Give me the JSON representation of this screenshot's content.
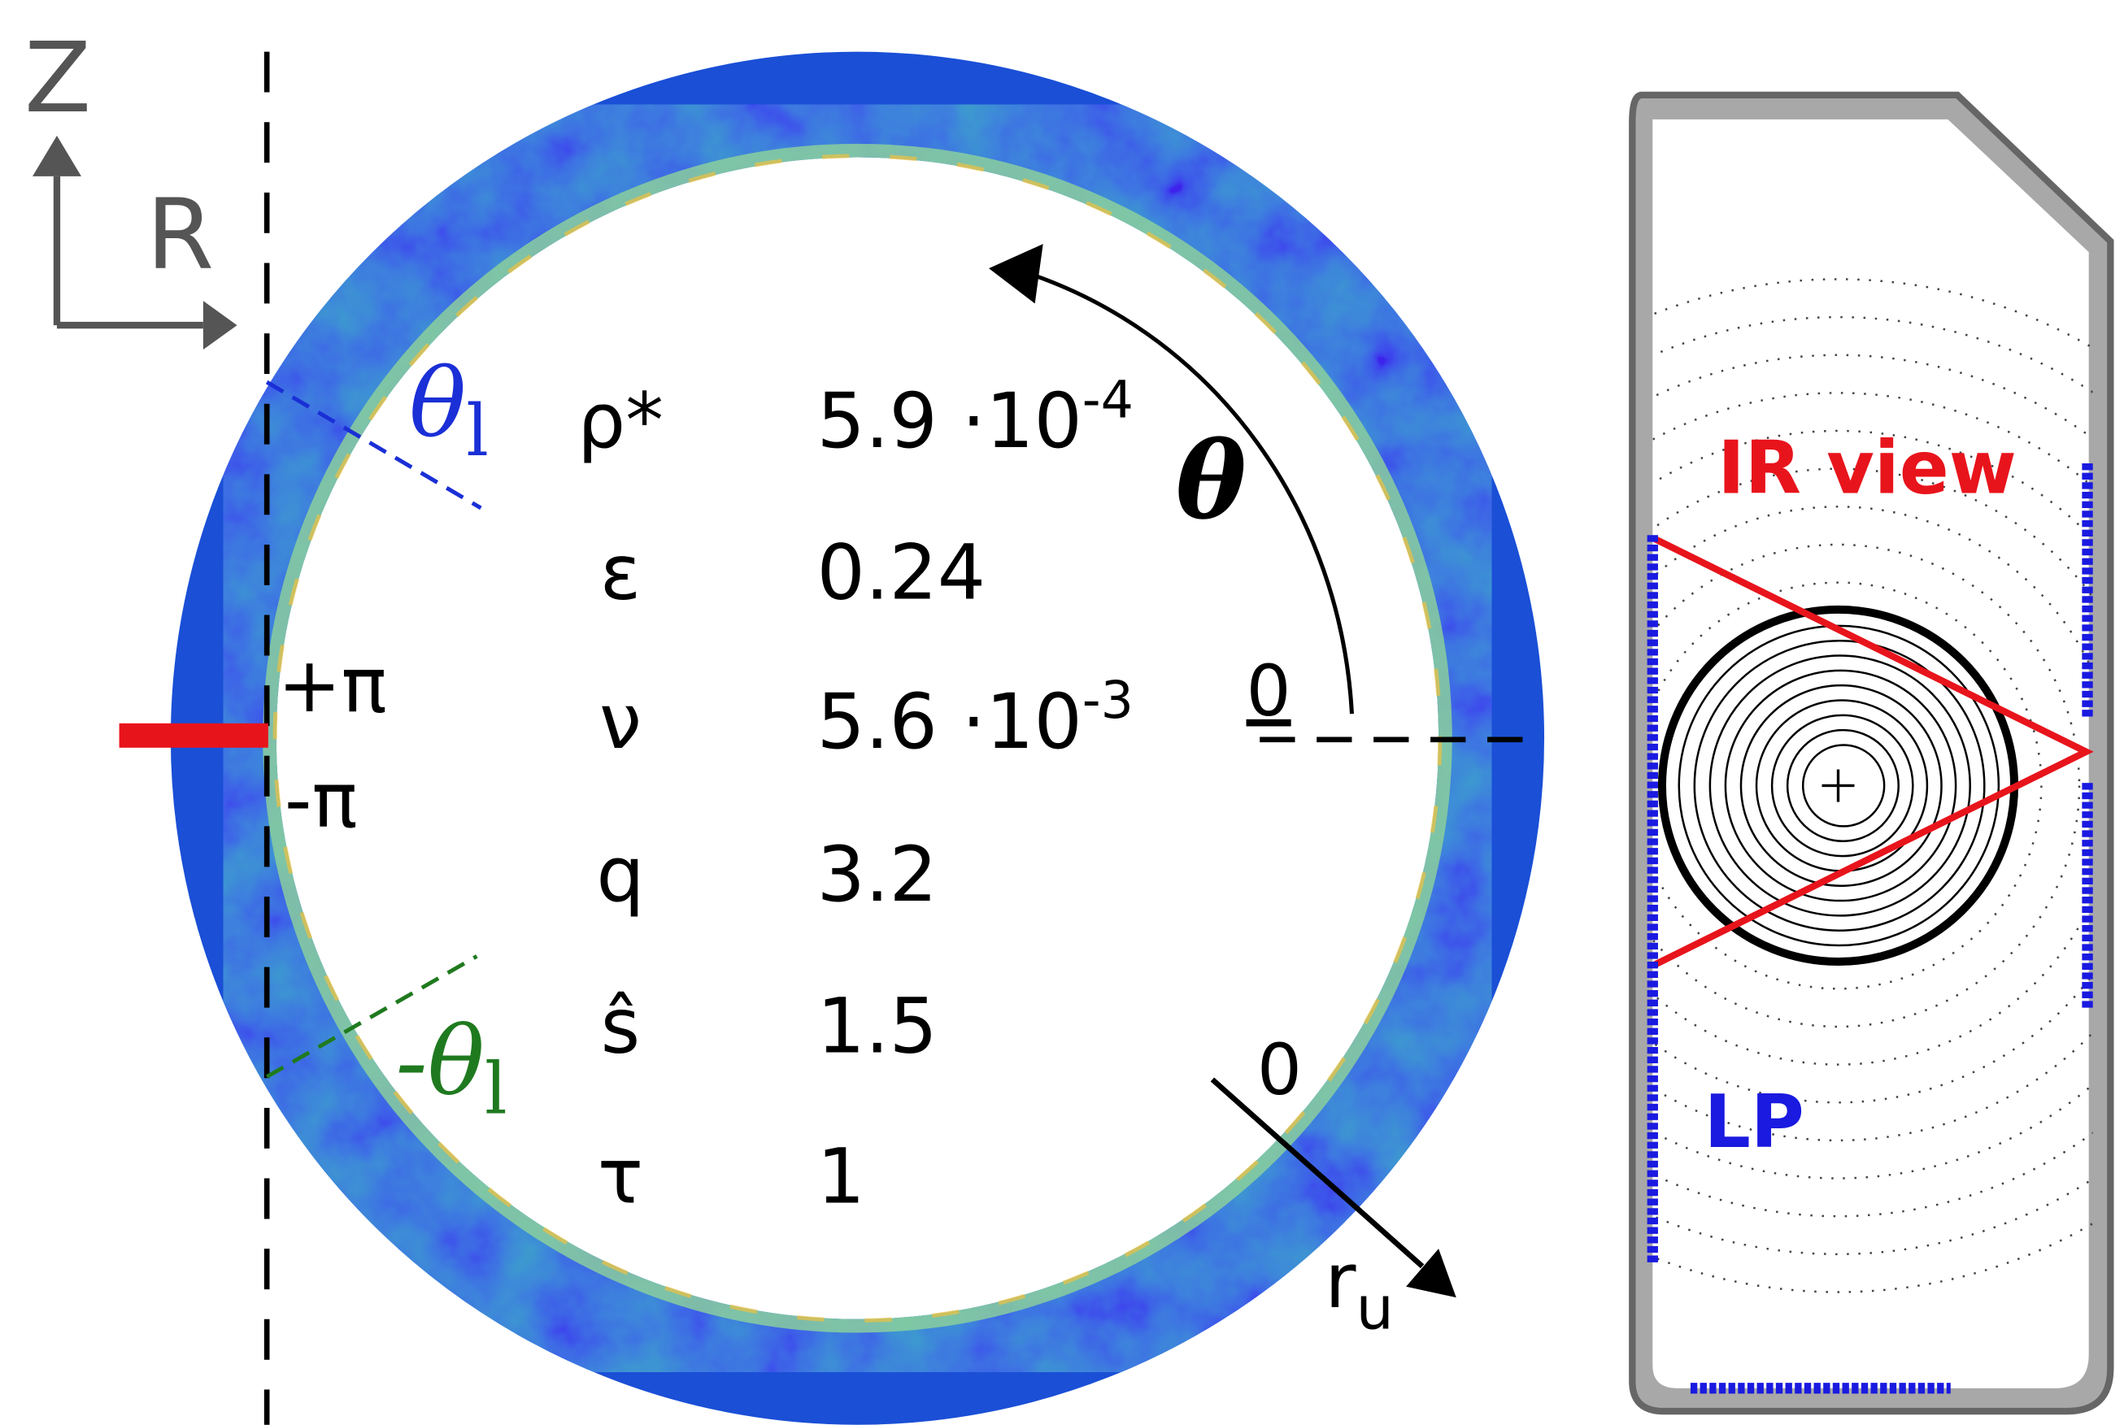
{
  "axes": {
    "z": "Z",
    "r": "R"
  },
  "angles": {
    "theta": "θ",
    "theta_zero": "0",
    "plus_pi": "+π",
    "minus_pi": "-π",
    "theta_l": "θ",
    "theta_l_sub": "l",
    "minus_theta_l": "-θ",
    "minus_theta_l_sub": "l"
  },
  "radial": {
    "zero": "0",
    "label": "r",
    "sub": "u"
  },
  "parameters": [
    {
      "symbol": "ρ*",
      "value": "5.9 ·10",
      "exponent": "-4"
    },
    {
      "symbol": "ε",
      "value": "0.24"
    },
    {
      "symbol": "ν",
      "value": "5.6 ·10",
      "exponent": "-3"
    },
    {
      "symbol": "q",
      "value": "3.2"
    },
    {
      "symbol": "ŝ",
      "value": "1.5"
    },
    {
      "symbol": "τ",
      "value": "1"
    }
  ],
  "machine": {
    "ir_view": "IR view",
    "lp": "LP"
  }
}
